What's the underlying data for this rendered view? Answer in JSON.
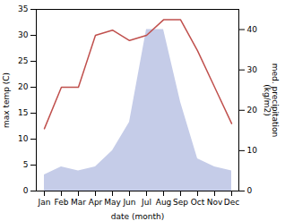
{
  "chart_data": {
    "type": "line",
    "xlabel": "date (month)",
    "ylabel": "max temp (C)",
    "y2label": "med. precipitation\n(kg/m2)",
    "categories": [
      "Jan",
      "Feb",
      "Mar",
      "Apr",
      "May",
      "Jun",
      "Jul",
      "Aug",
      "Sep",
      "Oct",
      "Nov",
      "Dec"
    ],
    "series": [
      {
        "type": "area",
        "axis": "y2",
        "color": "#c5cce8",
        "values": [
          4,
          6,
          5,
          6,
          10,
          17,
          40,
          40,
          22,
          8,
          6,
          5
        ]
      },
      {
        "type": "line",
        "color": "#c0504d",
        "values": [
          12,
          20,
          20,
          30,
          31,
          29,
          30,
          33,
          33,
          27,
          20,
          13
        ]
      }
    ],
    "ylim": [
      0,
      35
    ],
    "yticks": [
      0,
      5,
      10,
      15,
      20,
      25,
      30,
      35
    ],
    "y2lim": [
      0,
      45
    ],
    "y2ticks": [
      0,
      10,
      20,
      30,
      40
    ]
  }
}
